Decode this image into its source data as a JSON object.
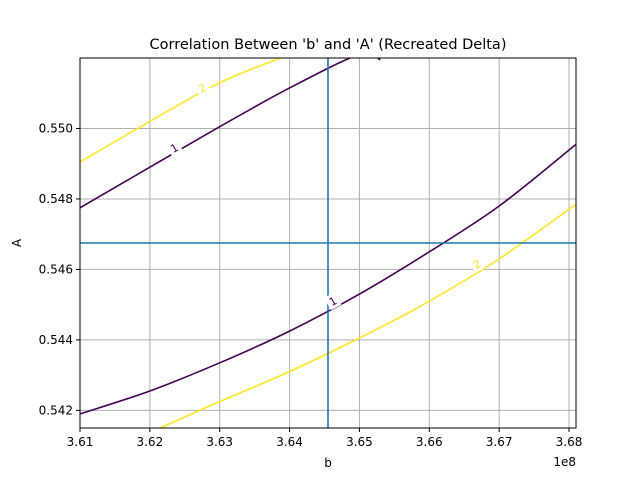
{
  "chart_data": {
    "type": "line",
    "title": "Correlation Between 'b' and 'A' (Recreated Delta)",
    "xlabel": "b",
    "ylabel": "A",
    "x_offset_label": "1e8",
    "xlim": [
      3.61,
      3.681
    ],
    "ylim": [
      0.5415,
      0.552
    ],
    "x_ticks": [
      3.61,
      3.62,
      3.63,
      3.64,
      3.65,
      3.66,
      3.67,
      3.68
    ],
    "x_tick_labels": [
      "3.61",
      "3.62",
      "3.63",
      "3.64",
      "3.65",
      "3.66",
      "3.67",
      "3.68"
    ],
    "y_ticks": [
      0.542,
      0.544,
      0.546,
      0.548,
      0.55
    ],
    "y_tick_labels": [
      "0.542",
      "0.544",
      "0.546",
      "0.548",
      "0.550"
    ],
    "grid": true,
    "reference_lines": {
      "vertical_x": 3.6455,
      "horizontal_y": 0.54675,
      "color": "#1f77b4"
    },
    "contour_levels": [
      {
        "level": 1,
        "label": "1",
        "color": "#440154",
        "curves": [
          {
            "x": [
              3.61,
              3.62,
              3.63,
              3.64,
              3.65,
              3.653
            ],
            "y": [
              0.54775,
              0.5489,
              0.55005,
              0.55115,
              0.5521,
              0.55195
            ]
          },
          {
            "x": [
              3.61,
              3.62,
              3.63,
              3.64,
              3.65,
              3.66,
              3.67,
              3.681
            ],
            "y": [
              0.5419,
              0.54255,
              0.54335,
              0.54425,
              0.5453,
              0.5465,
              0.5478,
              0.54955
            ]
          }
        ],
        "label_positions": [
          {
            "x": 3.6235,
            "y": 0.54945
          },
          {
            "x": 3.6462,
            "y": 0.5451
          }
        ]
      },
      {
        "level": 2,
        "label": "2",
        "color": "#fde725",
        "curves": [
          {
            "x": [
              3.61,
              3.62,
              3.63,
              3.64
            ],
            "y": [
              0.54905,
              0.5502,
              0.5513,
              0.5521
            ]
          },
          {
            "x": [
              3.6215,
              3.63,
              3.64,
              3.65,
              3.66,
              3.67,
              3.681
            ],
            "y": [
              0.5415,
              0.54225,
              0.5431,
              0.54405,
              0.5451,
              0.5463,
              0.54785
            ]
          }
        ],
        "label_positions": [
          {
            "x": 3.6275,
            "y": 0.55115
          },
          {
            "x": 3.6668,
            "y": 0.54615
          }
        ]
      }
    ]
  }
}
